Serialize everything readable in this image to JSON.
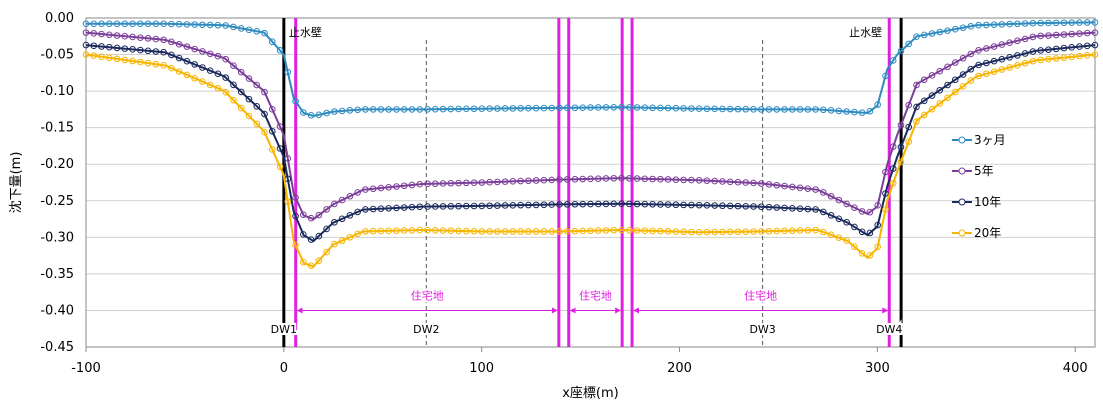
{
  "chart_data": {
    "type": "line",
    "xlabel": "x座標(m)",
    "ylabel": "沈下量(m)",
    "xlim": [
      -100,
      410
    ],
    "ylim": [
      -0.45,
      0.0
    ],
    "xticks": [
      "-100",
      "0",
      "100",
      "200",
      "300",
      "400"
    ],
    "yticks": [
      "0.00",
      "-0.05",
      "-0.10",
      "-0.15",
      "-0.20",
      "-0.25",
      "-0.30",
      "-0.35",
      "-0.40",
      "-0.45"
    ],
    "grid": "horizontal",
    "legend_position": "right",
    "series": [
      {
        "name": "3ヶ月",
        "color": "#2e8bc0",
        "x": [
          -100,
          -60,
          -30,
          -10,
          0,
          5,
          10,
          15,
          25,
          40,
          70,
          100,
          140,
          170,
          210,
          240,
          270,
          285,
          295,
          300,
          305,
          310,
          320,
          350,
          380,
          410
        ],
        "y": [
          -0.008,
          -0.008,
          -0.01,
          -0.02,
          -0.05,
          -0.11,
          -0.13,
          -0.134,
          -0.128,
          -0.125,
          -0.125,
          -0.124,
          -0.123,
          -0.122,
          -0.124,
          -0.125,
          -0.125,
          -0.128,
          -0.13,
          -0.12,
          -0.07,
          -0.05,
          -0.025,
          -0.01,
          -0.007,
          -0.006
        ]
      },
      {
        "name": "5年",
        "color": "#7b3f99",
        "x": [
          -100,
          -60,
          -30,
          -10,
          0,
          5,
          10,
          15,
          25,
          40,
          70,
          100,
          140,
          170,
          210,
          240,
          270,
          285,
          295,
          300,
          305,
          310,
          320,
          350,
          380,
          410
        ],
        "y": [
          -0.02,
          -0.03,
          -0.055,
          -0.1,
          -0.16,
          -0.24,
          -0.27,
          -0.275,
          -0.255,
          -0.235,
          -0.227,
          -0.225,
          -0.221,
          -0.219,
          -0.222,
          -0.226,
          -0.235,
          -0.255,
          -0.268,
          -0.258,
          -0.2,
          -0.16,
          -0.09,
          -0.045,
          -0.025,
          -0.02
        ]
      },
      {
        "name": "10年",
        "color": "#1b2a5c",
        "x": [
          -100,
          -60,
          -30,
          -10,
          0,
          5,
          10,
          15,
          25,
          40,
          70,
          100,
          140,
          170,
          210,
          240,
          270,
          285,
          295,
          300,
          305,
          310,
          320,
          350,
          380,
          410
        ],
        "y": [
          -0.037,
          -0.047,
          -0.08,
          -0.13,
          -0.19,
          -0.265,
          -0.297,
          -0.305,
          -0.28,
          -0.262,
          -0.258,
          -0.257,
          -0.255,
          -0.254,
          -0.256,
          -0.258,
          -0.262,
          -0.28,
          -0.297,
          -0.285,
          -0.23,
          -0.19,
          -0.12,
          -0.065,
          -0.045,
          -0.037
        ]
      },
      {
        "name": "20年",
        "color": "#f7b500",
        "x": [
          -100,
          -60,
          -30,
          -10,
          0,
          5,
          10,
          15,
          25,
          40,
          70,
          100,
          140,
          170,
          210,
          240,
          270,
          285,
          295,
          300,
          305,
          310,
          320,
          350,
          380,
          410
        ],
        "y": [
          -0.05,
          -0.065,
          -0.1,
          -0.155,
          -0.215,
          -0.305,
          -0.335,
          -0.34,
          -0.31,
          -0.292,
          -0.29,
          -0.292,
          -0.292,
          -0.29,
          -0.293,
          -0.292,
          -0.29,
          -0.305,
          -0.328,
          -0.315,
          -0.25,
          -0.21,
          -0.14,
          -0.08,
          -0.058,
          -0.05
        ]
      }
    ],
    "vlines_black": [
      0,
      312
    ],
    "vlines_magenta": [
      6,
      139,
      144,
      171,
      176,
      306
    ],
    "vlines_dashed": [
      72,
      242
    ],
    "wall_labels": [
      {
        "text": "止水壁",
        "x": 0
      },
      {
        "text": "止水壁",
        "x": 312
      }
    ],
    "dw_labels": [
      {
        "text": "DW1",
        "x": 0
      },
      {
        "text": "DW2",
        "x": 72
      },
      {
        "text": "DW3",
        "x": 242
      },
      {
        "text": "DW4",
        "x": 306
      }
    ],
    "zones": [
      {
        "label": "住宅地",
        "from": 6,
        "to": 139
      },
      {
        "label": "住宅地",
        "from": 144,
        "to": 171
      },
      {
        "label": "住宅地",
        "from": 176,
        "to": 306
      }
    ]
  }
}
